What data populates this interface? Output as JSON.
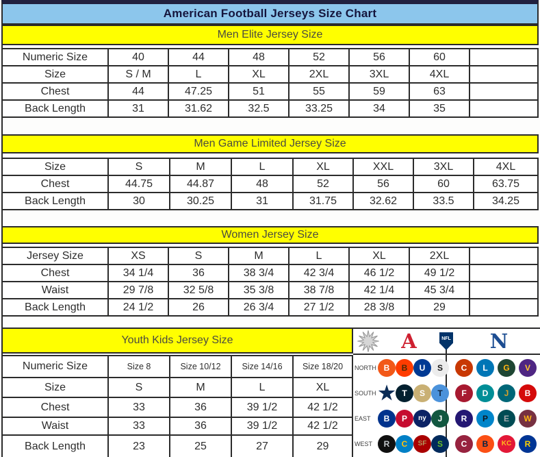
{
  "title": "American Football Jerseys Size Chart",
  "colors": {
    "title_bg": "#8cc6ec",
    "section_header_bg": "#ffff00",
    "border": "#2b2b2b",
    "title_text": "#15153d",
    "afc_red": "#ce2030",
    "nfc_blue": "#1c4d92",
    "nfl_shield_blue": "#013369"
  },
  "tables": [
    {
      "header": "Men Elite Jersey Size",
      "rows": [
        {
          "label": "Numeric Size",
          "cells": [
            "40",
            "44",
            "48",
            "52",
            "56",
            "60",
            ""
          ]
        },
        {
          "label": "Size",
          "cells": [
            "S / M",
            "L",
            "XL",
            "2XL",
            "3XL",
            "4XL",
            ""
          ]
        },
        {
          "label": "Chest",
          "cells": [
            "44",
            "47.25",
            "51",
            "55",
            "59",
            "63",
            ""
          ]
        },
        {
          "label": "Back Length",
          "cells": [
            "31",
            "31.62",
            "32.5",
            "33.25",
            "34",
            "35",
            ""
          ]
        }
      ]
    },
    {
      "header": "Men Game Limited Jersey Size",
      "rows": [
        {
          "label": "Size",
          "cells": [
            "S",
            "M",
            "L",
            "XL",
            "XXL",
            "3XL",
            "4XL"
          ]
        },
        {
          "label": "Chest",
          "cells": [
            "44.75",
            "44.87",
            "48",
            "52",
            "56",
            "60",
            "63.75"
          ]
        },
        {
          "label": "Back Length",
          "cells": [
            "30",
            "30.25",
            "31",
            "31.75",
            "32.62",
            "33.5",
            "34.25"
          ]
        }
      ]
    },
    {
      "header": "Women Jersey Size",
      "rows": [
        {
          "label": "Jersey Size",
          "cells": [
            "XS",
            "S",
            "M",
            "L",
            "XL",
            "2XL",
            ""
          ]
        },
        {
          "label": "Chest",
          "cells": [
            "34 1/4",
            "36",
            "38 3/4",
            "42 3/4",
            "46 1/2",
            "49 1/2",
            ""
          ]
        },
        {
          "label": "Waist",
          "cells": [
            "29 7/8",
            "32 5/8",
            "35 3/8",
            "38 7/8",
            "42 1/4",
            "45 3/4",
            ""
          ]
        },
        {
          "label": "Back Length",
          "cells": [
            "24 1/2",
            "26",
            "26 3/4",
            "27 1/2",
            "28 3/8",
            "29",
            ""
          ]
        }
      ]
    },
    {
      "header": "Youth Kids Jersey Size",
      "rows": [
        {
          "label": "Numeric Size",
          "small": true,
          "cells": [
            "Size 8",
            "Size 10/12",
            "Size 14/16",
            "Size 18/20"
          ]
        },
        {
          "label": "Size",
          "cells": [
            "S",
            "M",
            "L",
            "XL"
          ]
        },
        {
          "label": "Chest",
          "cells": [
            "33",
            "36",
            "39 1/2",
            "42 1/2"
          ]
        },
        {
          "label": "Waist",
          "cells": [
            "33",
            "36",
            "39 1/2",
            "42 1/2"
          ]
        },
        {
          "label": "Back Length",
          "cells": [
            "23",
            "25",
            "27",
            "29"
          ]
        }
      ]
    }
  ],
  "logo_panel": {
    "decor_icon": "starburst-icon",
    "afc_label": "A",
    "nfl_label": "NFL",
    "nfc_label": "N",
    "divisions": [
      {
        "label": "NORTH",
        "left": [
          {
            "name": "bengals",
            "abbr": "B",
            "bg": "#f25818",
            "fg": "#ffffff"
          },
          {
            "name": "browns",
            "abbr": "B",
            "bg": "#ff3c00",
            "fg": "#472a08"
          },
          {
            "name": "colts",
            "abbr": "U",
            "bg": "#003a94",
            "fg": "#ffffff"
          },
          {
            "name": "steelers",
            "abbr": "S",
            "bg": "#ececec",
            "fg": "#1a1a1a"
          }
        ],
        "right": [
          {
            "name": "bears",
            "abbr": "C",
            "bg": "#c83803",
            "fg": "#ffffff"
          },
          {
            "name": "lions",
            "abbr": "L",
            "bg": "#0076b6",
            "fg": "#ffffff"
          },
          {
            "name": "packers",
            "abbr": "G",
            "bg": "#1e4633",
            "fg": "#ffb612"
          },
          {
            "name": "vikings",
            "abbr": "V",
            "bg": "#4f2683",
            "fg": "#ffc62f"
          }
        ]
      },
      {
        "label": "SOUTH",
        "left": [
          {
            "name": "cowboys",
            "abbr": "★",
            "shape": "star",
            "bg": "transparent",
            "fg": "#0b2c56"
          },
          {
            "name": "texans",
            "abbr": "T",
            "bg": "#03202f",
            "fg": "#ffffff"
          },
          {
            "name": "saints",
            "abbr": "S",
            "bg": "#c9b074",
            "fg": "#ffffff"
          },
          {
            "name": "titans",
            "abbr": "T",
            "bg": "#4b92db",
            "fg": "#0c2340"
          }
        ],
        "right": [
          {
            "name": "falcons",
            "abbr": "F",
            "bg": "#a71930",
            "fg": "#ffffff"
          },
          {
            "name": "dolphins",
            "abbr": "D",
            "bg": "#008e97",
            "fg": "#ffffff"
          },
          {
            "name": "jaguars",
            "abbr": "J",
            "bg": "#006778",
            "fg": "#d7a22a"
          },
          {
            "name": "buccaneers",
            "abbr": "B",
            "bg": "#d50a0a",
            "fg": "#ffffff"
          }
        ]
      },
      {
        "label": "EAST",
        "left": [
          {
            "name": "bills",
            "abbr": "B",
            "bg": "#00338d",
            "fg": "#ffffff"
          },
          {
            "name": "patriots",
            "abbr": "P",
            "bg": "#c60c30",
            "fg": "#ffffff"
          },
          {
            "name": "giants",
            "abbr": "ny",
            "bg": "#0b2265",
            "fg": "#ffffff"
          },
          {
            "name": "jets",
            "abbr": "J",
            "bg": "#125740",
            "fg": "#ffffff"
          }
        ],
        "right": [
          {
            "name": "ravens",
            "abbr": "R",
            "bg": "#241773",
            "fg": "#ffffff"
          },
          {
            "name": "panthers",
            "abbr": "P",
            "bg": "#0085ca",
            "fg": "#101820"
          },
          {
            "name": "eagles",
            "abbr": "E",
            "bg": "#004c54",
            "fg": "#a5acaf"
          },
          {
            "name": "redskins",
            "abbr": "W",
            "bg": "#773141",
            "fg": "#ffb612"
          }
        ]
      },
      {
        "label": "WEST",
        "left": [
          {
            "name": "raiders",
            "abbr": "R",
            "bg": "#101010",
            "fg": "#c4c8cb"
          },
          {
            "name": "chargers",
            "abbr": "C",
            "bg": "#0080c6",
            "fg": "#ffc20e"
          },
          {
            "name": "49ers",
            "abbr": "SF",
            "bg": "#aa0000",
            "fg": "#b3995d"
          },
          {
            "name": "seahawks",
            "abbr": "S",
            "bg": "#002a5c",
            "fg": "#69be28"
          }
        ],
        "right": [
          {
            "name": "cardinals",
            "abbr": "C",
            "bg": "#97233f",
            "fg": "#ffffff"
          },
          {
            "name": "broncos",
            "abbr": "B",
            "bg": "#fb4f14",
            "fg": "#002244"
          },
          {
            "name": "chiefs",
            "abbr": "KC",
            "bg": "#e31837",
            "fg": "#ffb81c"
          },
          {
            "name": "rams",
            "abbr": "R",
            "bg": "#003594",
            "fg": "#ffd100"
          }
        ]
      }
    ]
  }
}
